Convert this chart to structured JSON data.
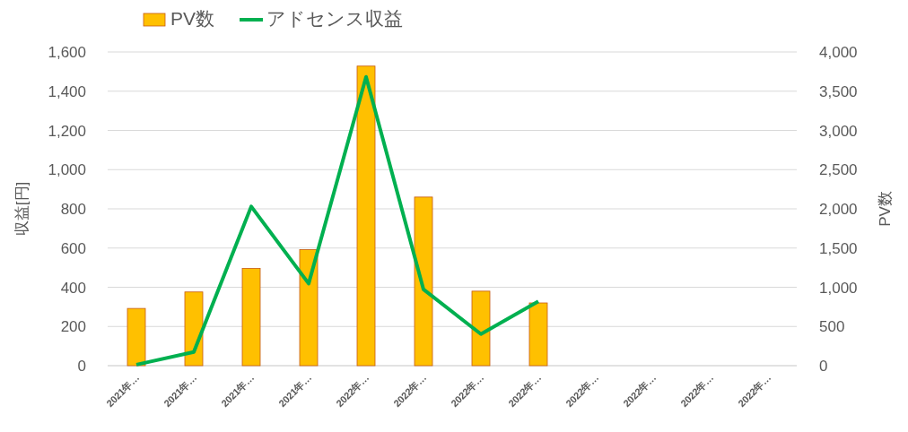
{
  "chart_data": {
    "type": "bar",
    "categories": [
      "2021年…",
      "2021年…",
      "2021年…",
      "2021年…",
      "2022年…",
      "2022年…",
      "2022年…",
      "2022年…",
      "2022年…",
      "2022年…",
      "2022年…",
      "2022年…"
    ],
    "series": [
      {
        "name": "PV数",
        "axis": "y2",
        "color": "#ffc000",
        "values": [
          730,
          940,
          1240,
          1480,
          3820,
          2150,
          950,
          800,
          null,
          null,
          null,
          null
        ]
      },
      {
        "name": "アドセンス収益",
        "type": "line",
        "axis": "y",
        "color": "#00b050",
        "values": [
          5,
          70,
          812,
          419,
          1473,
          389,
          161,
          328,
          null,
          null,
          null,
          null
        ]
      }
    ],
    "ylabel": "収益[円]",
    "y2label": "PV数",
    "ylim": [
      0,
      1600
    ],
    "yticks": [
      {
        "value": 0,
        "label": "0"
      },
      {
        "value": 200,
        "label": "200"
      },
      {
        "value": 400,
        "label": "400"
      },
      {
        "value": 600,
        "label": "600"
      },
      {
        "value": 800,
        "label": "800"
      },
      {
        "value": 1000,
        "label": "1,000"
      },
      {
        "value": 1200,
        "label": "1,200"
      },
      {
        "value": 1400,
        "label": "1,400"
      },
      {
        "value": 1600,
        "label": "1,600"
      }
    ],
    "y2lim": [
      0,
      4000
    ],
    "y2ticks": [
      {
        "value": 0,
        "label": "0"
      },
      {
        "value": 500,
        "label": "500"
      },
      {
        "value": 1000,
        "label": "1,000"
      },
      {
        "value": 1500,
        "label": "1,500"
      },
      {
        "value": 2000,
        "label": "2,000"
      },
      {
        "value": 2500,
        "label": "2,500"
      },
      {
        "value": 3000,
        "label": "3,000"
      },
      {
        "value": 3500,
        "label": "3,500"
      },
      {
        "value": 4000,
        "label": "4,000"
      }
    ],
    "grid": "y",
    "legend": "top left",
    "marker": "none",
    "line_style": "solid"
  }
}
